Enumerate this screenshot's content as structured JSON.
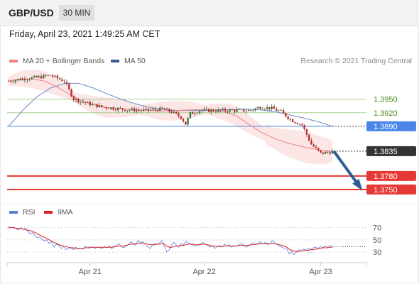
{
  "header": {
    "symbol": "GBP/USD",
    "timeframe": "30 MIN"
  },
  "datetime": "Friday, April 23, 2021 1:49:25 AM CET",
  "research": "Research © 2021 Trading Central",
  "legend_main": [
    {
      "label": "MA 20 + Bollinger Bands",
      "color": "#f08080"
    },
    {
      "label": "MA 50",
      "color": "#3b5998"
    }
  ],
  "legend_rsi": [
    {
      "label": "RSI",
      "color": "#5b7fd6"
    },
    {
      "label": "9MA",
      "color": "#e02020"
    }
  ],
  "colors": {
    "up": "#2e7d32",
    "down": "#c62828",
    "support": "#e53935",
    "resistance": "#8bc34a",
    "pivot": "#4a86e8",
    "current": "#333333",
    "arrow": "#2e5d96"
  },
  "chart_data": [
    {
      "type": "candlestick",
      "title": "GBP/USD",
      "x_tick_labels": [
        "Apr 21",
        "Apr 22",
        "Apr 23"
      ],
      "x_tick_index": [
        35,
        84,
        134
      ],
      "levels": [
        {
          "label": "1.3950",
          "value": 1.395,
          "kind": "resistance"
        },
        {
          "label": "1.3920",
          "value": 1.392,
          "kind": "resistance"
        },
        {
          "label": "1.3890",
          "value": 1.389,
          "kind": "pivot"
        },
        {
          "label": "1.3835",
          "value": 1.3835,
          "kind": "current"
        },
        {
          "label": "1.3780",
          "value": 1.378,
          "kind": "support"
        },
        {
          "label": "1.3750",
          "value": 1.375,
          "kind": "support"
        }
      ],
      "ylim": [
        1.372,
        1.4025
      ],
      "ma20": [
        1.399,
        1.3995,
        1.3995,
        1.399,
        1.3978,
        1.3962,
        1.3948,
        1.3938,
        1.3932,
        1.393,
        1.3928,
        1.3926,
        1.3925,
        1.3924,
        1.3925,
        1.3926,
        1.3927,
        1.3926,
        1.3922,
        1.3913,
        1.3895,
        1.3878,
        1.3865,
        1.3855,
        1.3848,
        1.3842,
        1.3837,
        1.3834
      ],
      "ma50": [
        1.389,
        1.3925,
        1.3955,
        1.3975,
        1.3985,
        1.3985,
        1.3975,
        1.3962,
        1.395,
        1.394,
        1.3932,
        1.3927,
        1.3925,
        1.3925,
        1.3925,
        1.3926,
        1.3927,
        1.3928,
        1.3926,
        1.3922,
        1.3915,
        1.3908,
        1.39,
        1.389
      ],
      "rsi_ylim": [
        15,
        80
      ],
      "rsi_ticks": [
        "70",
        "50",
        "30"
      ],
      "rsi_tick_values": [
        70,
        50,
        30
      ],
      "rsi": [
        72,
        70,
        71,
        69,
        66,
        70,
        67,
        69,
        64,
        60,
        62,
        57,
        53,
        55,
        51,
        48,
        50,
        44,
        47,
        38,
        43,
        41,
        36,
        39,
        34,
        36,
        37,
        34,
        38,
        35,
        36,
        35,
        40,
        37,
        39,
        38,
        36,
        38,
        37,
        36,
        39,
        37,
        40,
        36,
        38,
        41,
        44,
        39,
        37,
        40,
        42,
        47,
        44,
        41,
        49,
        45,
        47,
        43,
        39,
        36,
        41,
        44,
        43,
        45,
        49,
        39,
        30,
        34,
        42,
        46,
        41,
        38,
        44,
        42,
        48,
        45,
        43,
        41,
        40,
        42,
        44,
        46,
        43,
        41,
        38,
        40,
        36,
        39,
        41,
        38,
        43,
        40,
        42,
        38,
        41,
        39,
        42,
        44,
        41,
        38,
        40,
        43,
        45,
        42,
        44,
        47,
        43,
        46,
        42,
        44,
        49,
        45,
        42,
        40,
        38,
        36,
        35,
        27,
        31,
        26,
        30,
        34,
        32,
        35,
        33,
        36,
        34,
        37,
        38,
        36,
        39,
        37,
        40,
        38,
        41,
        39
      ],
      "rsi_ma": [
        70,
        70,
        70,
        69,
        69,
        68,
        68,
        67,
        66,
        65,
        64,
        62,
        60,
        58,
        56,
        54,
        52,
        50,
        48,
        46,
        44,
        42,
        41,
        40,
        39,
        38,
        37,
        37,
        36,
        36,
        36,
        36,
        37,
        37,
        37,
        38,
        38,
        38,
        38,
        38,
        38,
        38,
        38,
        38,
        39,
        39,
        40,
        40,
        40,
        41,
        42,
        43,
        43,
        44,
        44,
        45,
        45,
        44,
        43,
        42,
        42,
        42,
        43,
        43,
        44,
        43,
        40,
        38,
        38,
        39,
        40,
        40,
        41,
        41,
        42,
        43,
        43,
        43,
        42,
        42,
        42,
        43,
        43,
        42,
        41,
        40,
        40,
        39,
        39,
        39,
        40,
        40,
        40,
        40,
        40,
        40,
        41,
        41,
        41,
        41,
        41,
        42,
        42,
        43,
        43,
        44,
        44,
        44,
        44,
        44,
        44,
        44,
        43,
        42,
        41,
        40,
        38,
        35,
        33,
        32,
        31,
        31,
        32,
        32,
        33,
        33,
        34,
        34,
        35,
        35,
        36,
        37,
        37,
        37,
        38,
        38
      ]
    }
  ]
}
